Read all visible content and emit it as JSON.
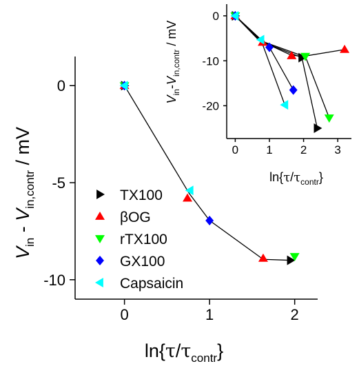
{
  "chart_data": [
    {
      "type": "scatter",
      "id": "main",
      "xlabel": "ln{τ/τcontr}",
      "ylabel": "Vin - Vin,contr / mV",
      "xlim": [
        -0.58,
        2.27
      ],
      "ylim": [
        -11.0,
        1.5
      ],
      "xticks": [
        "0",
        "1",
        "2"
      ],
      "yticks": [
        "0",
        "-5",
        "-10"
      ],
      "grid": false,
      "legend_position": "bottom-left",
      "connecting_line": {
        "x": [
          0,
          0.76,
          1.0,
          1.63,
          1.96
        ],
        "y": [
          0,
          -5.55,
          -6.95,
          -8.95,
          -9.0
        ]
      },
      "series": [
        {
          "name": "TX100",
          "marker": "triangle-right",
          "color": "#000000",
          "points": [
            {
              "x": 0,
              "y": 0
            },
            {
              "x": 1.95,
              "y": -9.0
            }
          ]
        },
        {
          "name": "βOG",
          "marker": "triangle-up",
          "color": "#ff0000",
          "points": [
            {
              "x": 0,
              "y": 0
            },
            {
              "x": 0.74,
              "y": -5.8
            },
            {
              "x": 1.63,
              "y": -8.9
            }
          ]
        },
        {
          "name": "rTX100",
          "marker": "triangle-down",
          "color": "#00ff00",
          "points": [
            {
              "x": 0,
              "y": 0
            },
            {
              "x": 2.0,
              "y": -8.8
            }
          ]
        },
        {
          "name": "GX100",
          "marker": "diamond",
          "color": "#0000ff",
          "points": [
            {
              "x": 0,
              "y": 0
            },
            {
              "x": 1.0,
              "y": -6.95
            }
          ]
        },
        {
          "name": "Capsaicin",
          "marker": "triangle-left",
          "color": "#00ffff",
          "points": [
            {
              "x": 0,
              "y": 0
            },
            {
              "x": 0.77,
              "y": -5.4
            }
          ]
        }
      ]
    },
    {
      "type": "scatter",
      "id": "inset",
      "xlabel": "ln{τ/τcontr}",
      "ylabel": "Vin - Vin,contr / mV",
      "xlim": [
        -0.25,
        3.4
      ],
      "ylim": [
        -27.3,
        2.6
      ],
      "xticks": [
        "0",
        "1",
        "2",
        "3"
      ],
      "yticks": [
        "0",
        "-10",
        "-20"
      ],
      "grid": false,
      "lines": [
        {
          "x": [
            0,
            0.8,
            2.0,
            3.2
          ],
          "y": [
            0,
            -5.7,
            -9.0,
            -7.5
          ]
        },
        {
          "x": [
            0,
            0.7,
            1.95,
            2.4
          ],
          "y": [
            0,
            -5.5,
            -9.3,
            -25.0
          ]
        },
        {
          "x": [
            0,
            0.75,
            1.65,
            2.05,
            2.75
          ],
          "y": [
            0,
            -5.6,
            -8.8,
            -9.0,
            -22.7
          ]
        },
        {
          "x": [
            0,
            1.0,
            1.7
          ],
          "y": [
            0,
            -7.0,
            -16.5
          ]
        },
        {
          "x": [
            0,
            0.75,
            1.45
          ],
          "y": [
            0,
            -5.3,
            -19.8
          ]
        }
      ],
      "series": [
        {
          "name": "TX100",
          "marker": "triangle-right",
          "color": "#000000",
          "points": [
            {
              "x": 0,
              "y": 0
            },
            {
              "x": 1.95,
              "y": -9.3
            },
            {
              "x": 2.4,
              "y": -25.0
            }
          ]
        },
        {
          "name": "βOG",
          "marker": "triangle-up",
          "color": "#ff0000",
          "points": [
            {
              "x": 0,
              "y": 0
            },
            {
              "x": 0.8,
              "y": -5.9
            },
            {
              "x": 1.65,
              "y": -8.9
            },
            {
              "x": 3.2,
              "y": -7.5
            }
          ]
        },
        {
          "name": "rTX100",
          "marker": "triangle-down",
          "color": "#00ff00",
          "points": [
            {
              "x": 0,
              "y": 0
            },
            {
              "x": 2.05,
              "y": -9.0
            },
            {
              "x": 2.75,
              "y": -22.7
            }
          ]
        },
        {
          "name": "GX100",
          "marker": "diamond",
          "color": "#0000ff",
          "points": [
            {
              "x": 0,
              "y": 0
            },
            {
              "x": 1.0,
              "y": -7.0
            },
            {
              "x": 1.7,
              "y": -16.5
            }
          ]
        },
        {
          "name": "Capsaicin",
          "marker": "triangle-left",
          "color": "#00ffff",
          "points": [
            {
              "x": 0,
              "y": 0
            },
            {
              "x": 0.75,
              "y": -5.3
            },
            {
              "x": 1.45,
              "y": -19.8
            }
          ]
        }
      ]
    }
  ]
}
